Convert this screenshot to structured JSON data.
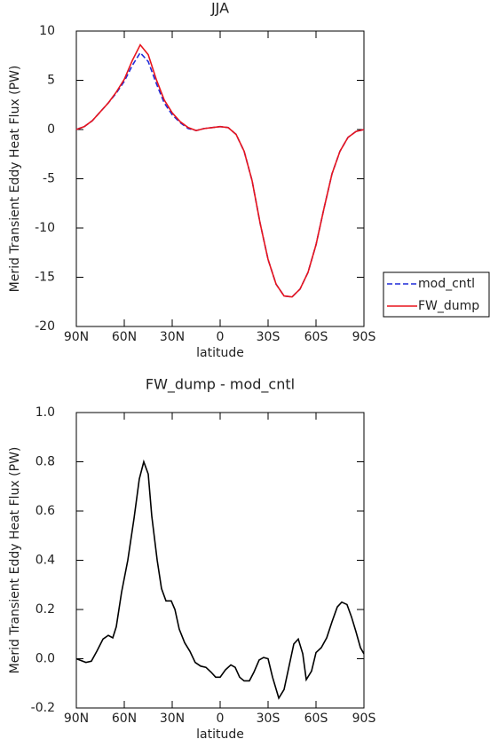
{
  "chart_data": [
    {
      "type": "line",
      "title": "JJA",
      "xlabel": "latitude",
      "ylabel": "Merid Transient Eddy Heat Flux (PW)",
      "x": [
        90,
        85,
        80,
        75,
        70,
        65,
        60,
        55,
        50,
        45,
        40,
        35,
        30,
        25,
        20,
        15,
        10,
        5,
        0,
        -5,
        -10,
        -15,
        -20,
        -25,
        -30,
        -35,
        -40,
        -45,
        -50,
        -55,
        -60,
        -65,
        -70,
        -75,
        -80,
        -85,
        -90
      ],
      "series": [
        {
          "name": "mod_cntl",
          "color": "#1f2bd8",
          "line_style": "dashed",
          "values": [
            0,
            0.3,
            0.9,
            1.8,
            2.7,
            3.7,
            4.9,
            6.5,
            7.8,
            6.9,
            4.7,
            2.7,
            1.5,
            0.7,
            0.1,
            -0.1,
            0.1,
            0.2,
            0.3,
            0.2,
            -0.5,
            -2.2,
            -5.2,
            -9.5,
            -13.2,
            -15.7,
            -16.9,
            -17.0,
            -16.2,
            -14.5,
            -11.7,
            -8.0,
            -4.5,
            -2.2,
            -0.8,
            -0.2,
            0
          ]
        },
        {
          "name": "FW_dump",
          "color": "#e8141c",
          "line_style": "solid",
          "values": [
            0,
            0.3,
            0.9,
            1.8,
            2.7,
            3.8,
            5.1,
            7.0,
            8.6,
            7.6,
            5.1,
            3.0,
            1.7,
            0.8,
            0.2,
            -0.1,
            0.1,
            0.2,
            0.3,
            0.2,
            -0.5,
            -2.2,
            -5.2,
            -9.5,
            -13.2,
            -15.7,
            -16.9,
            -17.0,
            -16.2,
            -14.5,
            -11.7,
            -8.0,
            -4.5,
            -2.2,
            -0.8,
            -0.2,
            0
          ]
        }
      ],
      "xlim": [
        90,
        -90
      ],
      "xticks": [
        {
          "value": 90,
          "label": "90N"
        },
        {
          "value": 60,
          "label": "60N"
        },
        {
          "value": 30,
          "label": "30N"
        },
        0,
        {
          "value": -30,
          "label": "30S"
        },
        {
          "value": -60,
          "label": "60S"
        },
        {
          "value": -90,
          "label": "90S"
        }
      ],
      "ylim": [
        -20,
        10
      ],
      "yticks": [
        -20,
        -15,
        -10,
        -5,
        0,
        5,
        10
      ],
      "legend": "outside-right"
    },
    {
      "type": "line",
      "title": "FW_dump - mod_cntl",
      "xlabel": "latitude",
      "ylabel": "Merid Transient Eddy Heat Flux (PW)",
      "x": [
        90,
        84,
        80.6,
        77.2,
        73.3,
        70,
        67.2,
        65,
        61.7,
        57.8,
        53.9,
        50.6,
        47.8,
        45,
        42.8,
        39.4,
        36.7,
        33.9,
        30.6,
        28.3,
        25.6,
        22.2,
        18.9,
        15.6,
        12.2,
        8.9,
        5.6,
        2.8,
        0,
        -3.3,
        -6.7,
        -9.4,
        -12.2,
        -15,
        -18.3,
        -21.1,
        -24.4,
        -27.2,
        -30,
        -32.8,
        -36.7,
        -40,
        -43.3,
        -46.1,
        -48.9,
        -51.7,
        -53.9,
        -57.2,
        -60,
        -63.3,
        -66.7,
        -70,
        -73.3,
        -76.1,
        -79.4,
        -82.2,
        -85,
        -87.8,
        -90
      ],
      "values": [
        0,
        -0.015,
        -0.01,
        0.03,
        0.08,
        0.095,
        0.085,
        0.13,
        0.27,
        0.4,
        0.57,
        0.73,
        0.8,
        0.75,
        0.58,
        0.4,
        0.285,
        0.235,
        0.235,
        0.2,
        0.12,
        0.065,
        0.03,
        -0.015,
        -0.03,
        -0.035,
        -0.055,
        -0.075,
        -0.075,
        -0.045,
        -0.025,
        -0.035,
        -0.075,
        -0.09,
        -0.09,
        -0.055,
        -0.005,
        0.005,
        0,
        -0.075,
        -0.16,
        -0.125,
        -0.025,
        0.06,
        0.08,
        0.02,
        -0.085,
        -0.05,
        0.025,
        0.045,
        0.085,
        0.15,
        0.21,
        0.23,
        0.22,
        0.17,
        0.11,
        0.045,
        0.02
      ],
      "color": "#000000",
      "xlim": [
        90,
        -90
      ],
      "xticks": [
        {
          "value": 90,
          "label": "90N"
        },
        {
          "value": 60,
          "label": "60N"
        },
        {
          "value": 30,
          "label": "30N"
        },
        0,
        {
          "value": -30,
          "label": "30S"
        },
        {
          "value": -60,
          "label": "60S"
        },
        {
          "value": -90,
          "label": "90S"
        }
      ],
      "ylim": [
        -0.2,
        1.0
      ],
      "yticks": [
        {
          "value": -0.2,
          "label": "-0.2"
        },
        {
          "value": 0,
          "label": "0.0"
        },
        0.2,
        0.4,
        0.6,
        0.8,
        {
          "value": 1.0,
          "label": "1.0"
        }
      ]
    }
  ]
}
